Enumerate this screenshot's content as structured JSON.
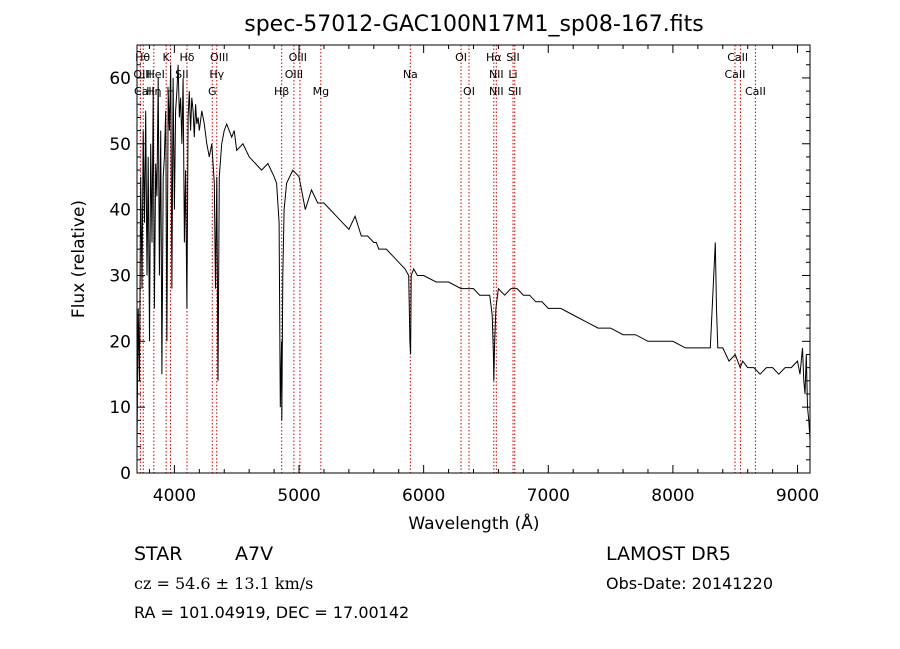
{
  "chart_data": {
    "type": "line",
    "title": "spec-57012-GAC100N17M1_sp08-167.fits",
    "xlabel": "Wavelength (Å)",
    "ylabel": "Flux (relative)",
    "xlim": [
      3700,
      9100
    ],
    "ylim": [
      0,
      65
    ],
    "xticks": [
      4000,
      5000,
      6000,
      7000,
      8000,
      9000
    ],
    "yticks": [
      0,
      10,
      20,
      30,
      40,
      50,
      60
    ],
    "grid": false,
    "line_color": "#000000",
    "marker_color": "#cc0000",
    "spectrum": {
      "x": [
        3700,
        3710,
        3720,
        3730,
        3740,
        3750,
        3760,
        3770,
        3780,
        3790,
        3800,
        3810,
        3820,
        3830,
        3840,
        3850,
        3860,
        3870,
        3880,
        3890,
        3900,
        3910,
        3920,
        3930,
        3940,
        3950,
        3960,
        3970,
        3980,
        3990,
        4000,
        4010,
        4020,
        4030,
        4040,
        4050,
        4060,
        4070,
        4080,
        4090,
        4100,
        4110,
        4120,
        4130,
        4140,
        4150,
        4160,
        4170,
        4180,
        4190,
        4200,
        4220,
        4240,
        4260,
        4280,
        4300,
        4320,
        4330,
        4340,
        4350,
        4360,
        4380,
        4400,
        4420,
        4440,
        4460,
        4480,
        4500,
        4550,
        4600,
        4650,
        4700,
        4750,
        4800,
        4820,
        4840,
        4850,
        4860,
        4862,
        4870,
        4880,
        4900,
        4950,
        5000,
        5050,
        5100,
        5150,
        5200,
        5250,
        5300,
        5350,
        5400,
        5450,
        5500,
        5550,
        5600,
        5620,
        5640,
        5700,
        5750,
        5800,
        5850,
        5880,
        5890,
        5895,
        5900,
        5920,
        5950,
        6000,
        6100,
        6200,
        6300,
        6400,
        6450,
        6500,
        6530,
        6550,
        6560,
        6563,
        6570,
        6580,
        6600,
        6650,
        6700,
        6750,
        6800,
        6850,
        6900,
        6950,
        7000,
        7100,
        7200,
        7300,
        7400,
        7500,
        7600,
        7700,
        7800,
        7900,
        8000,
        8100,
        8200,
        8300,
        8340,
        8350,
        8360,
        8400,
        8450,
        8500,
        8540,
        8560,
        8600,
        8650,
        8700,
        8750,
        8800,
        8850,
        8900,
        8950,
        9000,
        9020,
        9040,
        9050,
        9060,
        9070,
        9080,
        9090,
        9100
      ],
      "y": [
        4,
        25,
        14,
        45,
        28,
        52,
        38,
        55,
        30,
        48,
        20,
        50,
        35,
        58,
        25,
        47,
        42,
        60,
        30,
        52,
        15,
        45,
        48,
        55,
        20,
        58,
        52,
        62,
        28,
        60,
        40,
        55,
        58,
        62,
        54,
        57,
        50,
        60,
        35,
        46,
        25,
        54,
        58,
        52,
        57,
        55,
        51,
        56,
        53,
        54,
        52,
        55,
        53,
        50,
        48,
        50,
        44,
        28,
        45,
        14,
        45,
        50,
        52,
        53,
        52,
        51,
        52,
        49,
        50,
        48,
        47,
        46,
        47,
        45,
        44,
        38,
        10,
        20,
        8,
        30,
        40,
        44,
        46,
        45,
        40,
        43,
        41,
        41,
        40,
        39,
        38,
        37,
        39,
        36,
        36,
        35,
        35,
        34,
        34,
        33,
        32,
        31,
        30,
        20,
        18,
        30,
        31,
        30,
        30,
        29,
        29,
        28,
        28,
        27,
        27,
        27,
        24,
        18,
        14,
        20,
        25,
        28,
        27,
        28,
        28,
        27,
        27,
        26,
        26,
        25,
        25,
        24,
        23,
        22,
        22,
        21,
        21,
        20,
        20,
        20,
        19,
        19,
        19,
        35,
        25,
        19,
        19,
        17,
        18,
        16,
        17,
        16,
        16,
        15,
        16,
        16,
        15,
        16,
        16,
        17,
        15,
        19,
        14,
        12,
        18,
        10,
        8,
        5
      ]
    },
    "line_markers": [
      {
        "lines": [
          "Hθ",
          "OIII"
        ],
        "x": 3727
      },
      {
        "lines": [
          "HeI"
        ],
        "x": 3750
      },
      {
        "lines": [
          "Hη"
        ],
        "x": 3835
      },
      {
        "lines": [
          "K"
        ],
        "x": 3934
      },
      {
        "lines": [
          "H"
        ],
        "x": 3969
      },
      {
        "lines": [
          "Hδ",
          "SII"
        ],
        "x": 4101
      },
      {
        "lines": [
          "OIII",
          "Hγ"
        ],
        "x": 4340
      },
      {
        "lines": [
          "G"
        ],
        "x": 4304
      },
      {
        "lines": [
          "Hβ"
        ],
        "x": 4861
      },
      {
        "lines": [
          "OIII"
        ],
        "x": 4959
      },
      {
        "lines": [
          "OIII"
        ],
        "x": 5007
      },
      {
        "lines": [
          "Mg"
        ],
        "x": 5175
      },
      {
        "lines": [
          "Na"
        ],
        "x": 5893
      },
      {
        "lines": [
          "OI"
        ],
        "x": 6300
      },
      {
        "lines": [
          "OI"
        ],
        "x": 6364
      },
      {
        "lines": [
          "Hα",
          "NII"
        ],
        "x": 6563
      },
      {
        "lines": [
          "NII"
        ],
        "x": 6583
      },
      {
        "lines": [
          "SII",
          "Li"
        ],
        "x": 6717
      },
      {
        "lines": [
          "SII"
        ],
        "x": 6731
      },
      {
        "lines": [
          "CaII"
        ],
        "x": 8498
      },
      {
        "lines": [
          "CaII"
        ],
        "x": 8542
      },
      {
        "lines": [
          "CaII"
        ],
        "x": 8662
      }
    ]
  },
  "line_labels": [
    {
      "text": "Hθ",
      "x": 3745,
      "row": 1
    },
    {
      "text": "K",
      "x": 3934,
      "row": 1
    },
    {
      "text": "Hδ",
      "x": 4101,
      "row": 1
    },
    {
      "text": "OIII",
      "x": 4360,
      "row": 1
    },
    {
      "text": "OIII",
      "x": 4990,
      "row": 1
    },
    {
      "text": "OI",
      "x": 6300,
      "row": 1
    },
    {
      "text": "Hα",
      "x": 6563,
      "row": 1
    },
    {
      "text": "SII",
      "x": 6717,
      "row": 1
    },
    {
      "text": "CaII",
      "x": 8520,
      "row": 1
    },
    {
      "text": "OIII",
      "x": 3745,
      "row": 2
    },
    {
      "text": "HeI",
      "x": 3850,
      "row": 2
    },
    {
      "text": "SII",
      "x": 4060,
      "row": 2
    },
    {
      "text": "Hγ",
      "x": 4340,
      "row": 2
    },
    {
      "text": "OIII",
      "x": 4959,
      "row": 2
    },
    {
      "text": "Na",
      "x": 5893,
      "row": 2
    },
    {
      "text": "NII",
      "x": 6583,
      "row": 2
    },
    {
      "text": "Li",
      "x": 6717,
      "row": 2
    },
    {
      "text": "CaII",
      "x": 8498,
      "row": 2
    },
    {
      "text": "CaII",
      "x": 3760,
      "row": 3
    },
    {
      "text": "Hη",
      "x": 3835,
      "row": 3
    },
    {
      "text": "H",
      "x": 3969,
      "row": 3
    },
    {
      "text": "G",
      "x": 4304,
      "row": 3
    },
    {
      "text": "Hβ",
      "x": 4861,
      "row": 3
    },
    {
      "text": "Mg",
      "x": 5175,
      "row": 3
    },
    {
      "text": "OI",
      "x": 6364,
      "row": 3
    },
    {
      "text": "NII",
      "x": 6583,
      "row": 3
    },
    {
      "text": "SII",
      "x": 6731,
      "row": 3
    },
    {
      "text": "CaII",
      "x": 8662,
      "row": 3
    }
  ],
  "info": {
    "object_class": "STAR",
    "subclass": "A7V",
    "survey": "LAMOST DR5",
    "cz": "cz = 54.6 ± 13.1 km/s",
    "obs_date": "Obs-Date: 20141220",
    "coords": "RA = 101.04919, DEC =  17.00142"
  }
}
